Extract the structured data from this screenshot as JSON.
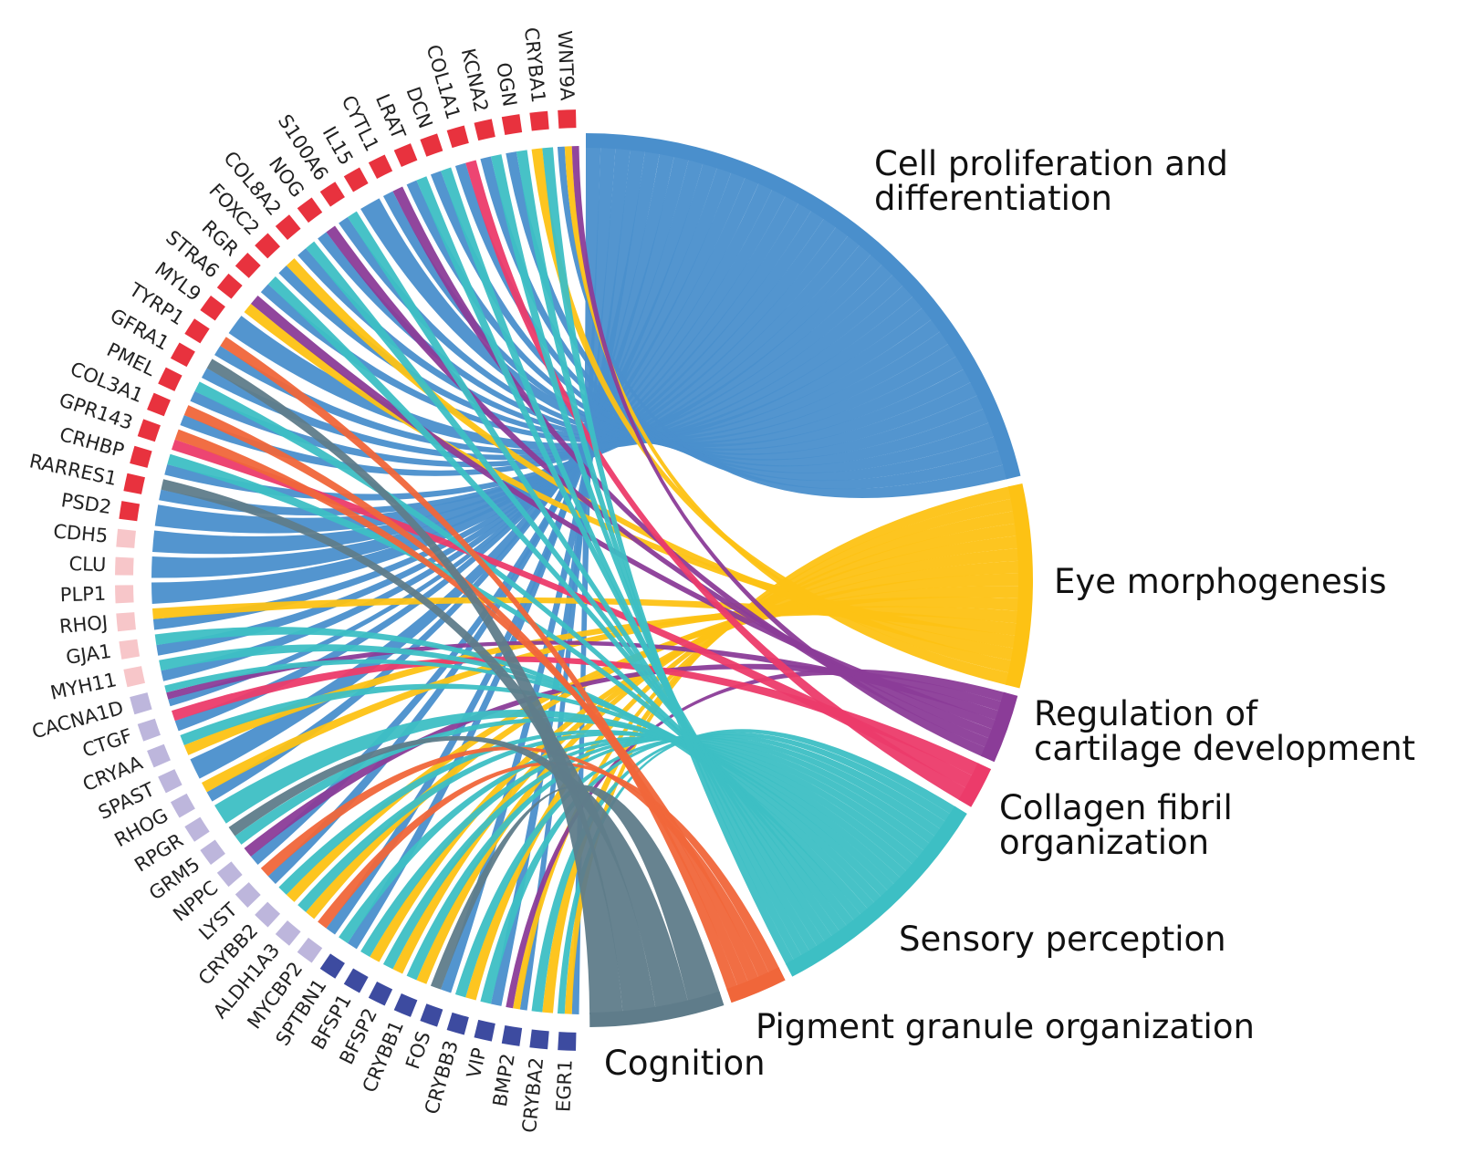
{
  "terms": [
    {
      "label": [
        "Cell proliferation and",
        "differentiation"
      ],
      "color": "#4A8FCC"
    },
    {
      "label": [
        "Eye morphogenesis"
      ],
      "color": "#FDC214"
    },
    {
      "label": [
        "Regulation of",
        "cartilage development"
      ],
      "color": "#8B3C98"
    },
    {
      "label": [
        "Collagen fibril",
        "organization"
      ],
      "color": "#EC3B6A"
    },
    {
      "label": [
        "Sensory perception"
      ],
      "color": "#3DBFC4"
    },
    {
      "label": [
        "Pigment granule organization"
      ],
      "color": "#F0663A"
    },
    {
      "label": [
        "Cognition"
      ],
      "color": "#5F7C8A"
    }
  ],
  "genes": [
    {
      "name": "EGR1",
      "terms": [
        0,
        1,
        4
      ]
    },
    {
      "name": "CRYBA2",
      "terms": [
        1,
        4
      ]
    },
    {
      "name": "BMP2",
      "terms": [
        0,
        1,
        2
      ]
    },
    {
      "name": "VIP",
      "terms": [
        0,
        4
      ]
    },
    {
      "name": "CRYBB3",
      "terms": [
        1,
        4
      ]
    },
    {
      "name": "FOS",
      "terms": [
        0,
        6
      ]
    },
    {
      "name": "CRYBB1",
      "terms": [
        1,
        4
      ]
    },
    {
      "name": "BFSP2",
      "terms": [
        1,
        4
      ]
    },
    {
      "name": "BFSP1",
      "terms": [
        1,
        4
      ]
    },
    {
      "name": "SPTBN1",
      "terms": [
        0,
        4
      ]
    },
    {
      "name": "MYCBP2",
      "terms": [
        0,
        5
      ]
    },
    {
      "name": "ALDH1A3",
      "terms": [
        1,
        4
      ]
    },
    {
      "name": "CRYBB2",
      "terms": [
        1,
        4
      ]
    },
    {
      "name": "LYST",
      "terms": [
        0,
        5
      ]
    },
    {
      "name": "NPPC",
      "terms": [
        0,
        2
      ]
    },
    {
      "name": "GRM5",
      "terms": [
        4,
        6
      ]
    },
    {
      "name": "RPGR",
      "terms": [
        4
      ]
    },
    {
      "name": "RHOG",
      "terms": [
        0,
        1
      ]
    },
    {
      "name": "SPAST",
      "terms": [
        0
      ]
    },
    {
      "name": "CRYAA",
      "terms": [
        1,
        4
      ]
    },
    {
      "name": "CTGF",
      "terms": [
        0,
        3
      ]
    },
    {
      "name": "CACNA1D",
      "terms": [
        0,
        2,
        4
      ]
    },
    {
      "name": "MYH11",
      "terms": [
        0,
        4
      ]
    },
    {
      "name": "GJA1",
      "terms": [
        0,
        4
      ]
    },
    {
      "name": "RHOJ",
      "terms": [
        0,
        1
      ]
    },
    {
      "name": "PLP1",
      "terms": [
        0
      ]
    },
    {
      "name": "CLU",
      "terms": [
        0
      ]
    },
    {
      "name": "CDH5",
      "terms": [
        0
      ]
    },
    {
      "name": "PSD2",
      "terms": [
        0
      ]
    },
    {
      "name": "RARRES1",
      "terms": [
        0,
        6
      ]
    },
    {
      "name": "CRHBP",
      "terms": [
        0,
        4
      ]
    },
    {
      "name": "GPR143",
      "terms": [
        3,
        5
      ]
    },
    {
      "name": "COL3A1",
      "terms": [
        0,
        5
      ]
    },
    {
      "name": "PMEL",
      "terms": [
        0,
        4
      ]
    },
    {
      "name": "GFRA1",
      "terms": [
        0,
        6
      ]
    },
    {
      "name": "TYRP1",
      "terms": [
        0,
        5
      ]
    },
    {
      "name": "MYL9",
      "terms": [
        0
      ]
    },
    {
      "name": "STRA6",
      "terms": [
        1,
        2
      ]
    },
    {
      "name": "RGR",
      "terms": [
        0,
        4
      ]
    },
    {
      "name": "FOXC2",
      "terms": [
        0,
        1
      ]
    },
    {
      "name": "COL8A2",
      "terms": [
        0,
        4
      ]
    },
    {
      "name": "NOG",
      "terms": [
        0,
        2
      ]
    },
    {
      "name": "S100A6",
      "terms": [
        0,
        4
      ]
    },
    {
      "name": "IL15",
      "terms": [
        0
      ]
    },
    {
      "name": "CYTL1",
      "terms": [
        0,
        2
      ]
    },
    {
      "name": "LRAT",
      "terms": [
        0,
        4
      ]
    },
    {
      "name": "DCN",
      "terms": [
        0,
        4
      ]
    },
    {
      "name": "COL1A1",
      "terms": [
        0,
        3
      ]
    },
    {
      "name": "KCNA2",
      "terms": [
        0,
        4
      ]
    },
    {
      "name": "OGN",
      "terms": [
        0,
        4
      ]
    },
    {
      "name": "CRYBA1",
      "terms": [
        1,
        4
      ]
    },
    {
      "name": "WNT9A",
      "terms": [
        0,
        1,
        2
      ]
    }
  ],
  "gene_colors": {
    "top": "#E8323E",
    "middle": "#F7C6C9",
    "lower": "#BDB6DC",
    "bottom": "#3D4BA0"
  }
}
